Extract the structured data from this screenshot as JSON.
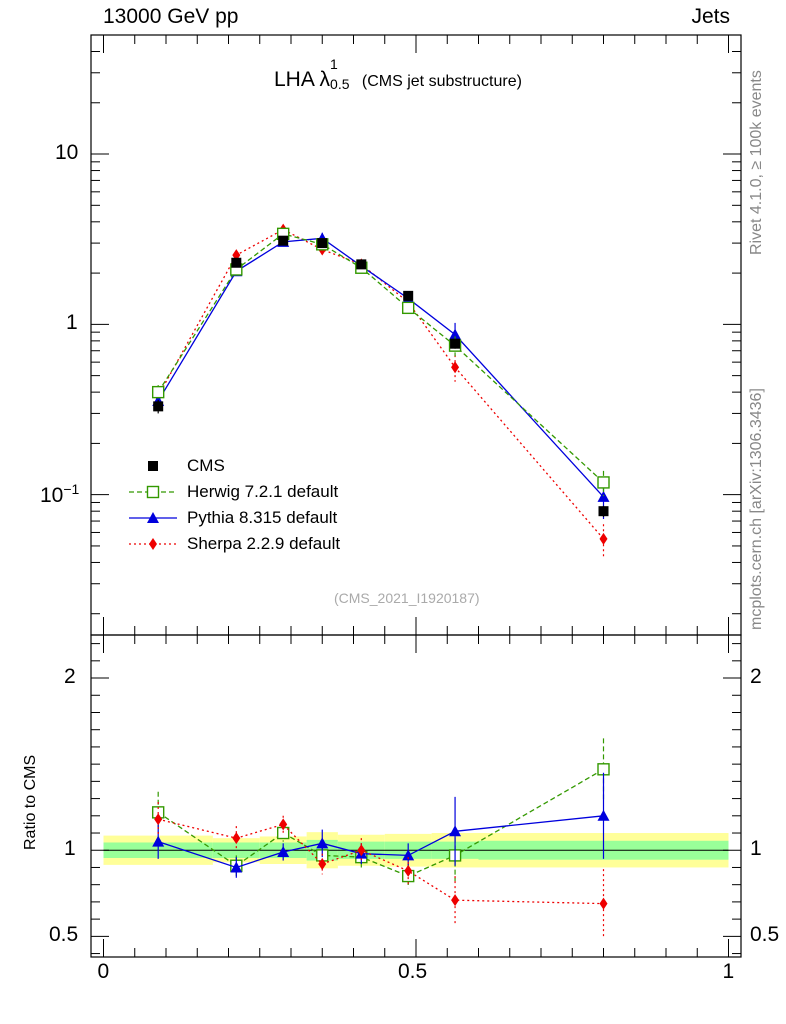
{
  "header": {
    "left": "13000 GeV pp",
    "right": "Jets"
  },
  "side_text": {
    "rivet": "Rivet 4.1.0, ≥ 100k events",
    "mcplots": "mcplots.cern.ch [arXiv:1306.3436]"
  },
  "title": {
    "main": "LHA",
    "lambda": "λ",
    "sup": "1",
    "sub": "0.5",
    "note": "(CMS jet substructure)"
  },
  "analysis_id": "(CMS_2021_I1920187)",
  "ratio_ylabel": "Ratio to CMS",
  "legend": [
    {
      "name": "CMS",
      "marker": "square-filled",
      "color": "#000000"
    },
    {
      "name": "Herwig 7.2.1 default",
      "marker": "square-open",
      "color": "#339900",
      "dash": "dashed"
    },
    {
      "name": "Pythia 8.315 default",
      "marker": "triangle",
      "color": "#0000dd",
      "dash": "solid"
    },
    {
      "name": "Sherpa 2.2.9 default",
      "marker": "diamond",
      "color": "#ee0000",
      "dash": "dotted"
    }
  ],
  "chart_data": [
    {
      "type": "scatter",
      "panel": "main",
      "yscale": "log",
      "xlim": [
        -0.02,
        1.02
      ],
      "ylim": [
        0.015,
        50
      ],
      "x": [
        0.0875,
        0.2125,
        0.2875,
        0.35,
        0.4125,
        0.4875,
        0.5625,
        0.8
      ],
      "xticks": [
        0,
        0.5,
        1
      ],
      "yticks": [
        {
          "value": 0.1,
          "label": "10",
          "exp": "−1"
        },
        {
          "value": 1,
          "label": "1"
        },
        {
          "value": 10,
          "label": "10"
        }
      ],
      "series": [
        {
          "name": "CMS",
          "values": [
            0.33,
            2.3,
            3.1,
            3.0,
            2.25,
            1.47,
            0.77,
            0.08
          ],
          "err": [
            0.03,
            0.12,
            0.15,
            0.15,
            0.1,
            0.08,
            0.05,
            0.006
          ]
        },
        {
          "name": "Herwig 7.2.1 default",
          "values": [
            0.4,
            2.1,
            3.4,
            2.95,
            2.15,
            1.25,
            0.75,
            0.118
          ],
          "err": [
            0.04,
            0.1,
            0.15,
            0.15,
            0.1,
            0.1,
            0.1,
            0.02
          ]
        },
        {
          "name": "Pythia 8.315 default",
          "values": [
            0.355,
            2.05,
            3.05,
            3.2,
            2.2,
            1.42,
            0.87,
            0.097
          ],
          "err": [
            0.035,
            0.1,
            0.15,
            0.25,
            0.12,
            0.1,
            0.15,
            0.025
          ]
        },
        {
          "name": "Sherpa 2.2.9 default",
          "values": [
            0.38,
            2.55,
            3.6,
            2.75,
            2.25,
            1.35,
            0.56,
            0.055
          ],
          "err": [
            0.03,
            0.12,
            0.15,
            0.15,
            0.12,
            0.1,
            0.1,
            0.012
          ]
        }
      ]
    },
    {
      "type": "scatter",
      "panel": "ratio",
      "xlim": [
        -0.02,
        1.02
      ],
      "ylim": [
        0.38,
        2.25
      ],
      "ylabel": "Ratio to CMS",
      "xticks": [
        0,
        0.5,
        1
      ],
      "yticks": [
        {
          "value": 0.5,
          "label": "0.5"
        },
        {
          "value": 1,
          "label": "1"
        },
        {
          "value": 2,
          "label": "2"
        }
      ],
      "band_edges": [
        0,
        0.175,
        0.25,
        0.325,
        0.375,
        0.45,
        0.525,
        0.6,
        1.0
      ],
      "band_inner": [
        [
          0.955,
          1.045
        ],
        [
          0.955,
          1.045
        ],
        [
          0.955,
          1.045
        ],
        [
          0.94,
          1.06
        ],
        [
          0.95,
          1.05
        ],
        [
          0.95,
          1.05
        ],
        [
          0.95,
          1.05
        ],
        [
          0.945,
          1.055
        ]
      ],
      "band_outer": [
        [
          0.915,
          1.085
        ],
        [
          0.93,
          1.07
        ],
        [
          0.92,
          1.08
        ],
        [
          0.895,
          1.105
        ],
        [
          0.91,
          1.09
        ],
        [
          0.905,
          1.095
        ],
        [
          0.9,
          1.1
        ],
        [
          0.9,
          1.1
        ]
      ],
      "x": [
        0.0875,
        0.2125,
        0.2875,
        0.35,
        0.4125,
        0.4875,
        0.5625,
        0.8
      ],
      "series": [
        {
          "name": "Herwig 7.2.1 default",
          "values": [
            1.22,
            0.91,
            1.1,
            0.97,
            0.96,
            0.85,
            0.97,
            1.47
          ],
          "err": [
            0.12,
            0.06,
            0.05,
            0.06,
            0.06,
            0.07,
            0.15,
            0.18
          ]
        },
        {
          "name": "Pythia 8.315 default",
          "values": [
            1.05,
            0.9,
            0.99,
            1.04,
            0.98,
            0.97,
            1.11,
            1.2
          ],
          "err": [
            0.1,
            0.06,
            0.05,
            0.08,
            0.06,
            0.07,
            0.2,
            0.25
          ]
        },
        {
          "name": "Sherpa 2.2.9 default",
          "values": [
            1.18,
            1.07,
            1.15,
            0.92,
            1.0,
            0.88,
            0.71,
            0.69
          ],
          "err": [
            0.1,
            0.07,
            0.05,
            0.06,
            0.07,
            0.08,
            0.14,
            0.2
          ]
        }
      ]
    }
  ]
}
